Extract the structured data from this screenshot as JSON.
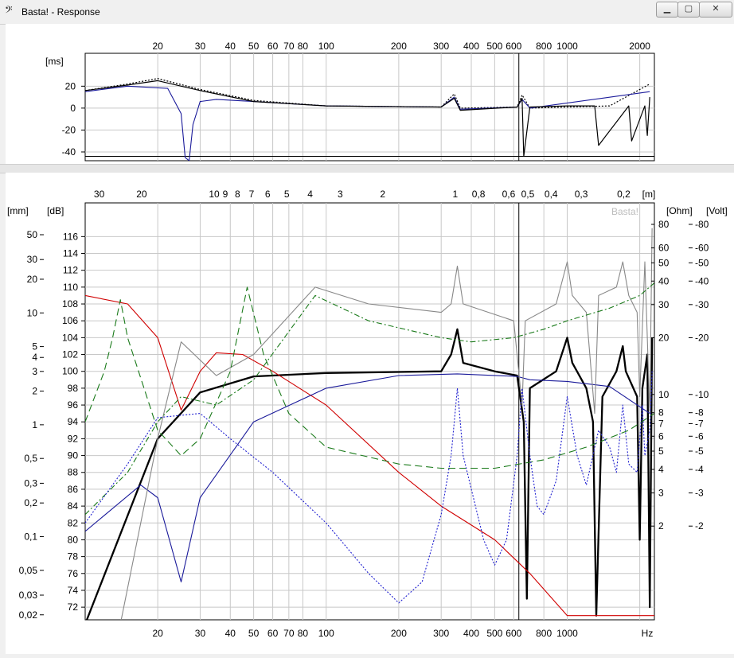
{
  "window": {
    "title": "Basta! - Response",
    "icon": "bass-clef-icon",
    "buttons": {
      "minimize": "▁",
      "maximize": "▢",
      "close": "✕"
    }
  },
  "watermark": "Basta!",
  "upper_chart": {
    "ylabel": "[ms]",
    "x_ticks": [
      "20",
      "30",
      "40",
      "50",
      "60",
      "70",
      "80",
      "100",
      "200",
      "300",
      "400",
      "500",
      "600",
      "800",
      "1000",
      "2000"
    ],
    "y_ticks": [
      "20",
      "0",
      "-20",
      "-40"
    ]
  },
  "lower_chart": {
    "top_ticks": [
      "30",
      "20",
      "10",
      "9",
      "8",
      "7",
      "6",
      "5",
      "4",
      "3",
      "2",
      "1",
      "0,8",
      "0,6",
      "0,5",
      "0,4",
      "0,3",
      "0,2",
      "[m]"
    ],
    "bottom_ticks": [
      "20",
      "30",
      "40",
      "50",
      "60",
      "70",
      "80",
      "100",
      "200",
      "300",
      "400",
      "500",
      "600",
      "800",
      "1000",
      "Hz"
    ],
    "mm_unit": "[mm]",
    "mm_ticks": [
      "50",
      "30",
      "20",
      "10",
      "5",
      "4",
      "3",
      "2",
      "1",
      "0,5",
      "0,3",
      "0,2",
      "0,1",
      "0,05",
      "0,03",
      "0,02"
    ],
    "db_unit": "[dB]",
    "db_ticks": [
      "116",
      "114",
      "112",
      "110",
      "108",
      "106",
      "104",
      "102",
      "100",
      "98",
      "96",
      "94",
      "92",
      "90",
      "88",
      "86",
      "84",
      "82",
      "80",
      "78",
      "76",
      "74",
      "72"
    ],
    "ohm_unit": "[Ohm]",
    "ohm_ticks": [
      "80",
      "60",
      "50",
      "40",
      "30",
      "20",
      "10",
      "8",
      "7",
      "6",
      "5",
      "4",
      "3",
      "2"
    ],
    "volt_unit": "[Volt]",
    "volt_ticks": [
      "-80",
      "-60",
      "-50",
      "-40",
      "-30",
      "-20",
      "-10",
      "-8",
      "-7",
      "-6",
      "-5",
      "-4",
      "-3",
      "-2"
    ]
  },
  "chart_data": [
    {
      "type": "line",
      "title": "",
      "ylabel": "[ms]",
      "x_scale": "log",
      "xlim": [
        10,
        2300
      ],
      "ylim": [
        -48,
        50
      ],
      "grid": true,
      "cursor_x": 630,
      "series": [
        {
          "style": "dotted-black",
          "color": "#000000",
          "points": [
            [
              10,
              16
            ],
            [
              15,
              22
            ],
            [
              20,
              27
            ],
            [
              30,
              17
            ],
            [
              50,
              7
            ],
            [
              100,
              2
            ],
            [
              300,
              1
            ],
            [
              340,
              13
            ],
            [
              360,
              0
            ],
            [
              620,
              1
            ],
            [
              650,
              12
            ],
            [
              700,
              0
            ],
            [
              1000,
              1
            ],
            [
              1500,
              2
            ],
            [
              2200,
              22
            ]
          ]
        },
        {
          "style": "solid-blue",
          "color": "#1a1a9a",
          "points": [
            [
              10,
              15
            ],
            [
              15,
              20
            ],
            [
              22,
              18
            ],
            [
              25,
              -5
            ],
            [
              26,
              -45
            ],
            [
              27,
              -48
            ],
            [
              28,
              -15
            ],
            [
              30,
              6
            ],
            [
              35,
              8
            ],
            [
              50,
              6
            ],
            [
              100,
              2
            ],
            [
              300,
              1
            ],
            [
              340,
              10
            ],
            [
              360,
              -1
            ],
            [
              620,
              1
            ],
            [
              650,
              8
            ],
            [
              700,
              0
            ],
            [
              2200,
              15
            ]
          ]
        },
        {
          "style": "solid-black",
          "color": "#000000",
          "points": [
            [
              10,
              16
            ],
            [
              15,
              21
            ],
            [
              20,
              25
            ],
            [
              30,
              16
            ],
            [
              50,
              6
            ],
            [
              100,
              2
            ],
            [
              300,
              1
            ],
            [
              340,
              9
            ],
            [
              360,
              -2
            ],
            [
              620,
              1
            ],
            [
              650,
              9
            ],
            [
              660,
              -44
            ],
            [
              700,
              1
            ],
            [
              1000,
              2
            ],
            [
              1300,
              2
            ],
            [
              1350,
              -34
            ],
            [
              1800,
              2
            ],
            [
              1850,
              -30
            ],
            [
              2100,
              2
            ],
            [
              2150,
              -25
            ],
            [
              2200,
              10
            ]
          ]
        }
      ]
    },
    {
      "type": "line",
      "title": "",
      "ylabel": "[dB]",
      "xlabel": "Hz",
      "x_scale": "log",
      "xlim": [
        10,
        2300
      ],
      "ylim": [
        70.5,
        120
      ],
      "grid": true,
      "cursor_x": 630,
      "series": [
        {
          "style": "solid-black-bold",
          "color": "#000000",
          "points": [
            [
              10,
              70
            ],
            [
              20,
              92
            ],
            [
              30,
              97.5
            ],
            [
              50,
              99.4
            ],
            [
              100,
              99.8
            ],
            [
              300,
              100
            ],
            [
              330,
              102
            ],
            [
              350,
              105
            ],
            [
              370,
              101
            ],
            [
              500,
              100
            ],
            [
              620,
              99.5
            ],
            [
              660,
              94
            ],
            [
              680,
              73
            ],
            [
              700,
              98
            ],
            [
              900,
              100
            ],
            [
              1000,
              104
            ],
            [
              1050,
              101
            ],
            [
              1200,
              98
            ],
            [
              1280,
              94
            ],
            [
              1320,
              71
            ],
            [
              1400,
              97
            ],
            [
              1600,
              100
            ],
            [
              1700,
              103
            ],
            [
              1750,
              100
            ],
            [
              1950,
              97
            ],
            [
              2000,
              80
            ],
            [
              2050,
              98
            ],
            [
              2150,
              102
            ],
            [
              2200,
              72
            ],
            [
              2250,
              104
            ]
          ]
        },
        {
          "style": "solid-red",
          "color": "#d00000",
          "points": [
            [
              10,
              109
            ],
            [
              15,
              108
            ],
            [
              20,
              104
            ],
            [
              25,
              95.4
            ],
            [
              30,
              100
            ],
            [
              35,
              102.2
            ],
            [
              45,
              102
            ],
            [
              60,
              100
            ],
            [
              100,
              96
            ],
            [
              200,
              88
            ],
            [
              300,
              84
            ],
            [
              500,
              80
            ],
            [
              700,
              76
            ],
            [
              1000,
              71
            ],
            [
              2300,
              71
            ]
          ]
        },
        {
          "style": "solid-blue",
          "color": "#1a1a9a",
          "points": [
            [
              10,
              81
            ],
            [
              17,
              86.5
            ],
            [
              20,
              85
            ],
            [
              25,
              75
            ],
            [
              30,
              85
            ],
            [
              50,
              94
            ],
            [
              100,
              98
            ],
            [
              200,
              99.5
            ],
            [
              350,
              99.7
            ],
            [
              620,
              99.4
            ],
            [
              700,
              99
            ],
            [
              1000,
              98.8
            ],
            [
              1500,
              98.2
            ],
            [
              2200,
              95
            ]
          ]
        },
        {
          "style": "solid-grey",
          "color": "#888888",
          "points": [
            [
              10,
              70
            ],
            [
              14,
              70
            ],
            [
              20,
              92
            ],
            [
              25,
              103.5
            ],
            [
              35,
              99.5
            ],
            [
              50,
              102
            ],
            [
              90,
              110
            ],
            [
              150,
              108
            ],
            [
              300,
              107
            ],
            [
              330,
              108
            ],
            [
              350,
              112.5
            ],
            [
              370,
              108
            ],
            [
              600,
              106
            ],
            [
              650,
              96
            ],
            [
              670,
              106
            ],
            [
              900,
              108
            ],
            [
              1000,
              113
            ],
            [
              1050,
              109
            ],
            [
              1200,
              107
            ],
            [
              1300,
              95
            ],
            [
              1350,
              109
            ],
            [
              1600,
              110
            ],
            [
              1700,
              113
            ],
            [
              1800,
              109
            ],
            [
              1950,
              107
            ],
            [
              2000,
              97
            ],
            [
              2100,
              113
            ],
            [
              2200,
              95
            ],
            [
              2250,
              117
            ]
          ]
        },
        {
          "style": "dashdot-green",
          "color": "#1a7a1a",
          "points": [
            [
              10,
              83
            ],
            [
              15,
              88
            ],
            [
              20,
              94
            ],
            [
              25,
              97
            ],
            [
              35,
              96
            ],
            [
              50,
              99
            ],
            [
              90,
              109
            ],
            [
              150,
              106
            ],
            [
              300,
              104
            ],
            [
              400,
              103.5
            ],
            [
              600,
              104
            ],
            [
              800,
              105
            ],
            [
              1000,
              106
            ],
            [
              1500,
              107.5
            ],
            [
              2000,
              109
            ],
            [
              2300,
              110.5
            ]
          ]
        },
        {
          "style": "dashed-green",
          "color": "#1a7a1a",
          "points": [
            [
              10,
              94
            ],
            [
              12,
              100
            ],
            [
              13,
              104
            ],
            [
              14,
              108.5
            ],
            [
              15,
              104
            ],
            [
              20,
              93
            ],
            [
              25,
              90
            ],
            [
              30,
              92
            ],
            [
              40,
              100
            ],
            [
              47,
              110
            ],
            [
              55,
              102
            ],
            [
              70,
              95
            ],
            [
              100,
              91
            ],
            [
              200,
              89
            ],
            [
              300,
              88.5
            ],
            [
              500,
              88.5
            ],
            [
              800,
              89.5
            ],
            [
              1200,
              91
            ],
            [
              1800,
              93
            ],
            [
              2300,
              95
            ]
          ]
        },
        {
          "style": "dotted-blue",
          "color": "#2020d0",
          "points": [
            [
              10,
              82
            ],
            [
              15,
              89
            ],
            [
              20,
              94.5
            ],
            [
              30,
              95
            ],
            [
              40,
              92
            ],
            [
              60,
              88
            ],
            [
              100,
              82
            ],
            [
              150,
              76
            ],
            [
              200,
              72.5
            ],
            [
              250,
              75
            ],
            [
              300,
              83
            ],
            [
              330,
              90
            ],
            [
              350,
              98
            ],
            [
              370,
              90
            ],
            [
              450,
              80
            ],
            [
              500,
              77
            ],
            [
              560,
              80
            ],
            [
              620,
              90
            ],
            [
              650,
              98
            ],
            [
              700,
              90
            ],
            [
              750,
              84
            ],
            [
              800,
              83
            ],
            [
              900,
              87
            ],
            [
              1000,
              97
            ],
            [
              1100,
              90
            ],
            [
              1200,
              86.5
            ],
            [
              1350,
              93
            ],
            [
              1500,
              91
            ],
            [
              1600,
              88
            ],
            [
              1700,
              96
            ],
            [
              1800,
              89
            ],
            [
              1950,
              88
            ],
            [
              2050,
              96
            ],
            [
              2100,
              90
            ],
            [
              2200,
              93
            ],
            [
              2250,
              100
            ]
          ]
        }
      ]
    }
  ]
}
